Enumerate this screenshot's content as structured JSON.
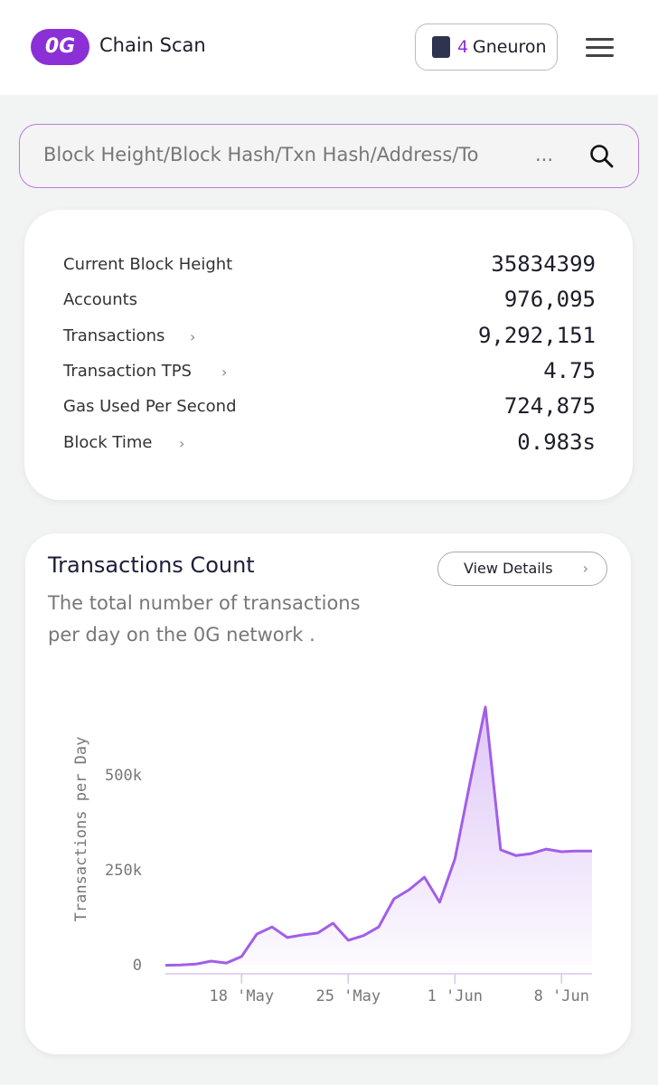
{
  "header": {
    "brand": "Chain Scan",
    "logo": "0G",
    "gas_value": "4",
    "gas_unit": "Gneuron"
  },
  "search": {
    "placeholder": "Block Height/Block Hash/Txn Hash/Address/To",
    "more": "..."
  },
  "stats": [
    {
      "label": "Current Block Height",
      "value": "35834399"
    },
    {
      "label": "Accounts",
      "value": "976,095"
    },
    {
      "label": "Transactions",
      "value": "9,292,151"
    },
    {
      "label": "Transaction TPS",
      "value": "4.75"
    },
    {
      "label": "Gas Used Per Second",
      "value": "724,875"
    },
    {
      "label": "Block Time",
      "value": "0.983s"
    }
  ],
  "card": {
    "button": "View Details"
  },
  "chart_data": {
    "type": "line",
    "title": "Transactions Count",
    "subtitle": "The total number of transactions per day on the 0G network .",
    "y_label": "Transactions per Day",
    "color": "#a25ee8",
    "categories": [
      null,
      null,
      null,
      null,
      null,
      "18 'May",
      null,
      null,
      null,
      null,
      null,
      null,
      "25 'May",
      null,
      null,
      null,
      null,
      null,
      null,
      "1 'Jun",
      null,
      null,
      null,
      null,
      null,
      null,
      "8 'Jun",
      null,
      null
    ],
    "values": [
      1000,
      2000,
      4000,
      12000,
      7000,
      24000,
      83000,
      102000,
      74000,
      81000,
      86000,
      112000,
      67000,
      79000,
      102000,
      176000,
      200000,
      233000,
      167000,
      281000,
      483000,
      681000,
      305000,
      290000,
      295000,
      307000,
      300000,
      302000,
      302000
    ],
    "ylim": [
      0,
      700000
    ],
    "yticks": [
      0,
      {
        "value": 250000,
        "label": "250k"
      },
      {
        "value": 500000,
        "label": "500k"
      }
    ]
  }
}
